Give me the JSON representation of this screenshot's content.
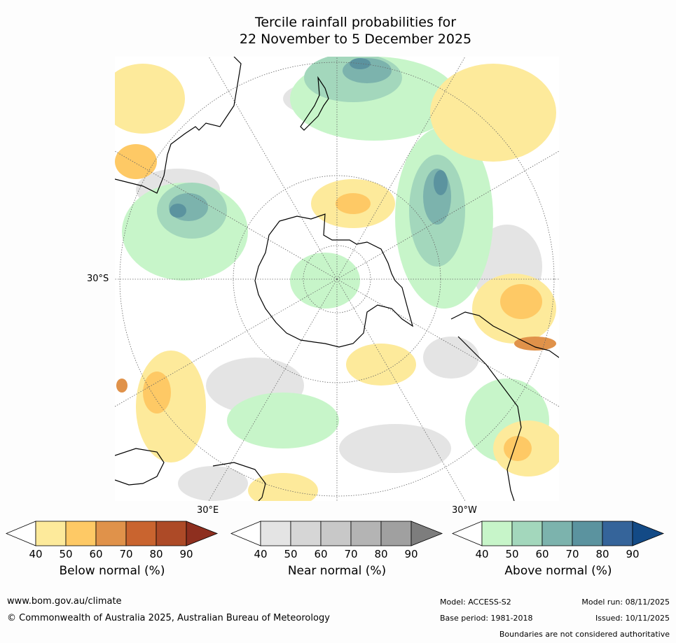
{
  "title_line1": "Tercile rainfall probabilities for",
  "title_line2": "22 November to 5 December 2025",
  "map": {
    "labels": {
      "lat_30s": "30°S",
      "lon_30e": "30°E",
      "lon_30w": "30°W"
    },
    "colors": {
      "ocean": "#ffffff",
      "coast": "#000000",
      "grid": "#666666"
    }
  },
  "colorbars": [
    {
      "title": "Below normal (%)",
      "ticks": [
        "40",
        "50",
        "60",
        "70",
        "80",
        "90"
      ],
      "colors": [
        "#ffffff",
        "#fdea9b",
        "#fec965",
        "#e0924a",
        "#c9642f",
        "#ad4a27",
        "#8e2f1f"
      ]
    },
    {
      "title": "Near normal (%)",
      "ticks": [
        "40",
        "50",
        "60",
        "70",
        "80",
        "90"
      ],
      "colors": [
        "#ffffff",
        "#e4e4e4",
        "#d6d6d6",
        "#c8c8c8",
        "#b4b4b4",
        "#a0a0a0",
        "#7d7d7d"
      ]
    },
    {
      "title": "Above normal (%)",
      "ticks": [
        "40",
        "50",
        "60",
        "70",
        "80",
        "90"
      ],
      "colors": [
        "#ffffff",
        "#c7f5c9",
        "#a3d7bc",
        "#7cb3ad",
        "#5b939f",
        "#35649a",
        "#134a86"
      ]
    }
  ],
  "footer": {
    "url": "www.bom.gov.au/climate",
    "copyright": "© Commonwealth of Australia 2025, Australian Bureau of Meteorology",
    "model": "Model: ACCESS-S2",
    "base_period": "Base period: 1981-2018",
    "model_run": "Model run: 08/11/2025",
    "issued": "Issued: 10/11/2025",
    "disclaimer": "Boundaries are not considered authoritative"
  }
}
